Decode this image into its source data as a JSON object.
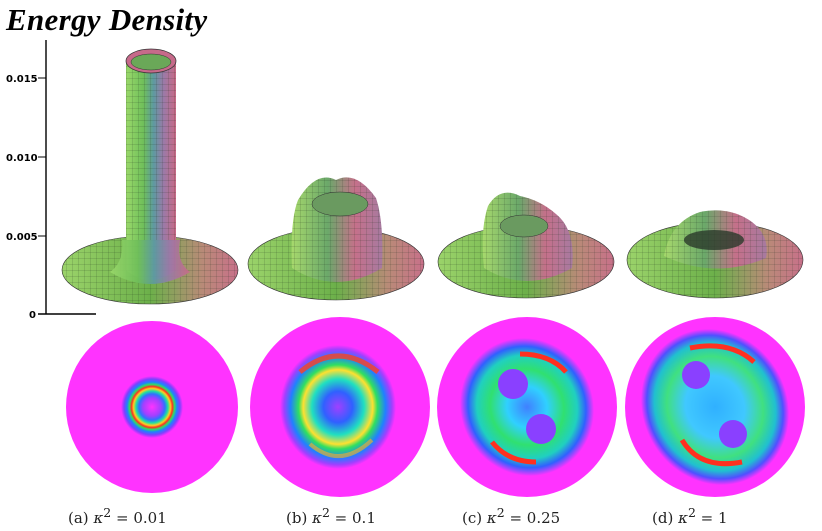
{
  "title": "Energy Density",
  "axis": {
    "ticks": [
      "0.015",
      "0.010",
      "0.005",
      "0"
    ]
  },
  "panels": [
    {
      "caption_prefix": "(a)",
      "caption_var": "κ",
      "caption_exp": "2",
      "caption_value": "= 0.01"
    },
    {
      "caption_prefix": "(b)",
      "caption_var": "κ",
      "caption_exp": "2",
      "caption_value": "= 0.1"
    },
    {
      "caption_prefix": "(c)",
      "caption_var": "κ",
      "caption_exp": "2",
      "caption_value": "= 0.25"
    },
    {
      "caption_prefix": "(d)",
      "caption_var": "κ",
      "caption_exp": "2",
      "caption_value": "= 1"
    }
  ],
  "colors": {
    "background_disc": "#ff33ff",
    "surface_green": "#8fd35a",
    "surface_pink": "#d0607a"
  }
}
